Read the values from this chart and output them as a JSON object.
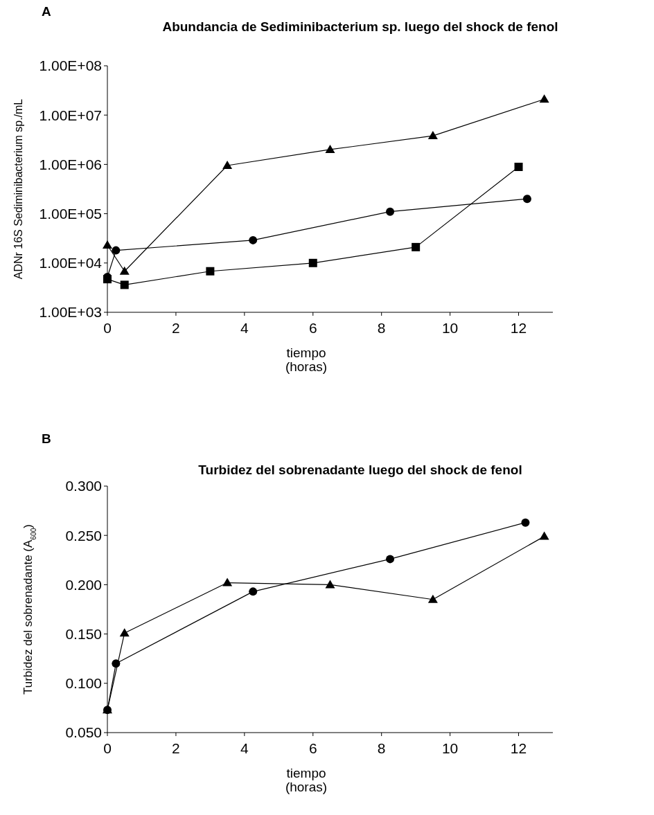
{
  "chart_data": [
    {
      "type": "line",
      "title": "Abundancia de Sediminibacterium sp. luego del shock de fenol",
      "xlabel": "tiempo\n(horas)",
      "ylabel": "ADNr 16S Sediminibacterium sp./mL",
      "annotations": [
        "A"
      ],
      "log": "y",
      "xlim": [
        0,
        13
      ],
      "xticks": [
        0,
        2,
        4,
        6,
        8,
        10,
        12
      ],
      "ylim": [
        1000,
        100000000
      ],
      "yticks": [
        {
          "value": 1000,
          "label": "1.00E+03"
        },
        {
          "value": 10000,
          "label": "1.00E+04"
        },
        {
          "value": 100000,
          "label": "1.00E+05"
        },
        {
          "value": 1000000,
          "label": "1.00E+06"
        },
        {
          "value": 10000000,
          "label": "1.00E+07"
        },
        {
          "value": 100000000,
          "label": "1.00E+08"
        }
      ],
      "grid": false,
      "series": [
        {
          "color": "#000000",
          "marker": "triangle",
          "x": [
            0,
            0.5,
            3.5,
            6.5,
            9.5,
            12.75
          ],
          "values": [
            23000,
            6800,
            950000,
            2000000,
            3800000,
            21000000
          ]
        },
        {
          "color": "#000000",
          "marker": "circle",
          "x": [
            0,
            0.25,
            4.25,
            8.25,
            12.25
          ],
          "values": [
            5200,
            18000,
            29000,
            110000,
            200000
          ]
        },
        {
          "color": "#000000",
          "marker": "square",
          "x": [
            0,
            0.5,
            3,
            6,
            9,
            12
          ],
          "values": [
            4700,
            3600,
            6800,
            10000,
            21000,
            890000
          ]
        }
      ]
    },
    {
      "type": "line",
      "title": "Turbidez del sobrenadante luego del shock de fenol",
      "xlabel": "tiempo\n(horas)",
      "ylabel": "Turbidez del sobrenadante (A$_{600}$)",
      "annotations": [
        "B"
      ],
      "xlim": [
        0,
        13
      ],
      "xticks": [
        0,
        2,
        4,
        6,
        8,
        10,
        12
      ],
      "ylim": [
        0.05,
        0.3
      ],
      "yticks": [
        {
          "value": 0.05,
          "label": "0.050"
        },
        {
          "value": 0.1,
          "label": "0.100"
        },
        {
          "value": 0.15,
          "label": "0.150"
        },
        {
          "value": 0.2,
          "label": "0.200"
        },
        {
          "value": 0.25,
          "label": "0.250"
        },
        {
          "value": 0.3,
          "label": "0.300"
        }
      ],
      "grid": false,
      "series": [
        {
          "color": "#000000",
          "marker": "circle",
          "x": [
            0,
            0.25,
            4.25,
            8.25,
            12.2
          ],
          "values": [
            0.073,
            0.12,
            0.193,
            0.226,
            0.263
          ]
        },
        {
          "color": "#000000",
          "marker": "triangle",
          "x": [
            0,
            0.5,
            3.5,
            6.5,
            9.5,
            12.75
          ],
          "values": [
            0.073,
            0.151,
            0.202,
            0.2,
            0.185,
            0.249
          ]
        }
      ]
    }
  ]
}
